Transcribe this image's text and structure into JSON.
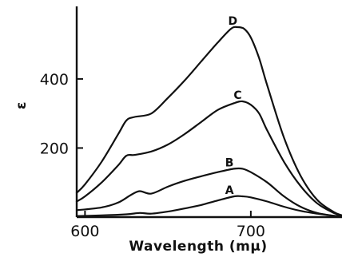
{
  "chart_data": {
    "type": "line",
    "xlabel": "Wavelength (mμ)",
    "ylabel": "ε",
    "xlim": [
      595,
      755
    ],
    "ylim": [
      0,
      610
    ],
    "xticks": [
      600,
      700
    ],
    "yticks": [
      200,
      400
    ],
    "grid": false,
    "series": [
      {
        "name": "A",
        "x": [
          595,
          610,
          625,
          633,
          640,
          650,
          660,
          670,
          680,
          690,
          695,
          700,
          710,
          720,
          730,
          740,
          750,
          755
        ],
        "values": [
          3,
          5,
          8,
          12,
          10,
          16,
          25,
          35,
          48,
          60,
          60,
          57,
          45,
          30,
          18,
          10,
          4,
          2
        ]
      },
      {
        "name": "B",
        "x": [
          595,
          610,
          620,
          628,
          633,
          640,
          650,
          660,
          670,
          680,
          690,
          695,
          700,
          710,
          720,
          730,
          740,
          750,
          755
        ],
        "values": [
          20,
          28,
          42,
          65,
          75,
          68,
          88,
          105,
          118,
          130,
          140,
          140,
          130,
          100,
          60,
          30,
          12,
          4,
          2
        ]
      },
      {
        "name": "C",
        "x": [
          595,
          600,
          610,
          620,
          625,
          630,
          640,
          650,
          660,
          670,
          680,
          690,
          695,
          700,
          705,
          710,
          720,
          730,
          740,
          750,
          755
        ],
        "values": [
          45,
          60,
          100,
          150,
          178,
          180,
          190,
          210,
          240,
          275,
          310,
          330,
          335,
          325,
          300,
          250,
          160,
          90,
          40,
          12,
          5
        ]
      },
      {
        "name": "D",
        "x": [
          595,
          600,
          610,
          620,
          625,
          630,
          640,
          650,
          660,
          670,
          680,
          688,
          692,
          696,
          700,
          705,
          710,
          720,
          730,
          740,
          750,
          755
        ],
        "values": [
          70,
          95,
          160,
          240,
          280,
          290,
          300,
          345,
          395,
          450,
          505,
          545,
          550,
          545,
          520,
          460,
          380,
          230,
          120,
          50,
          15,
          5
        ]
      }
    ]
  }
}
